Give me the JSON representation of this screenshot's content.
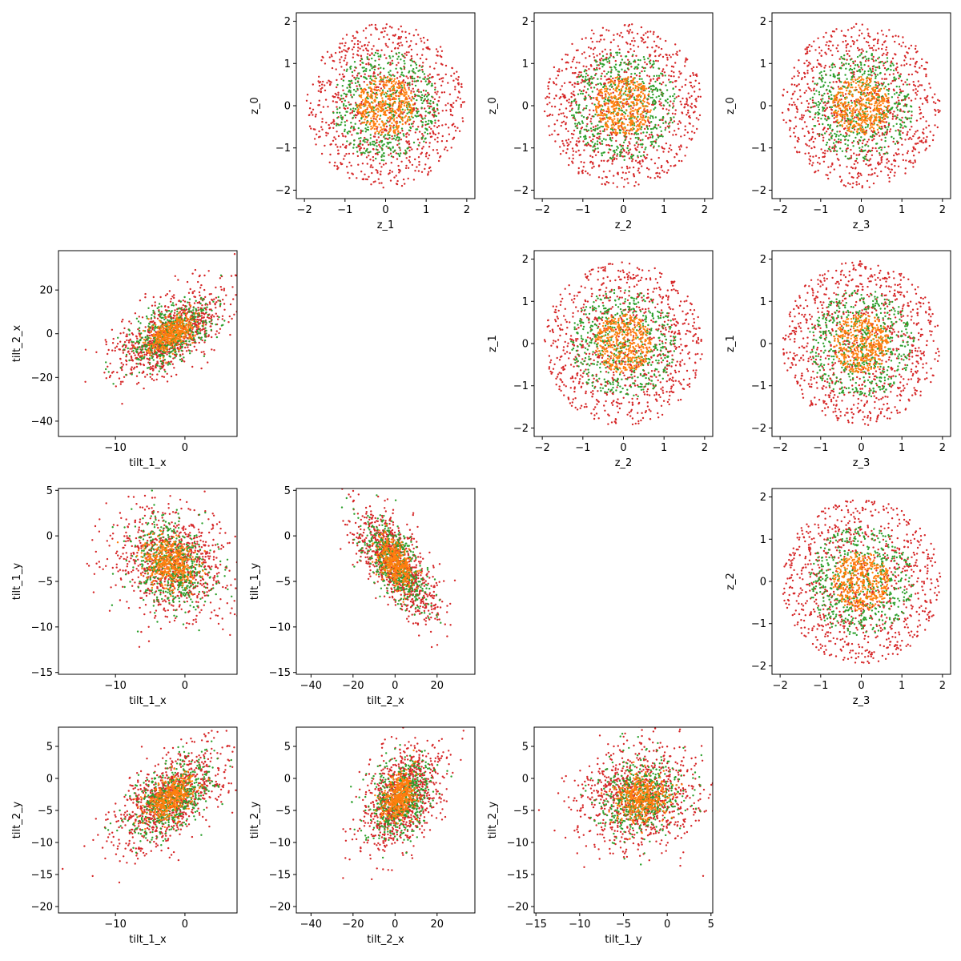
{
  "colors": {
    "red": "#d62728",
    "green": "#2ca02c",
    "orange": "#ff7f0e",
    "axes": "#000000",
    "background": "#ffffff"
  },
  "chart_data": [
    {
      "type": "scatter",
      "id": "z1-z0",
      "xlabel": "z_1",
      "ylabel": "z_0",
      "xlim": [
        -2.2,
        2.2
      ],
      "ylim": [
        -2.2,
        2.2
      ],
      "xticks": [
        -2,
        -1,
        0,
        1,
        2
      ],
      "yticks": [
        -2,
        -1,
        0,
        1,
        2
      ],
      "series": [
        {
          "color": "red",
          "distribution": "uniform-disk",
          "center": [
            0,
            0
          ],
          "radius": 1.95,
          "n": 900
        },
        {
          "color": "green",
          "distribution": "uniform-disk",
          "center": [
            0,
            0
          ],
          "radius": 1.3,
          "n": 500
        },
        {
          "color": "orange",
          "distribution": "uniform-disk",
          "center": [
            0,
            0
          ],
          "radius": 0.7,
          "n": 400
        }
      ],
      "grid": false
    },
    {
      "type": "scatter",
      "id": "z2-z0",
      "xlabel": "z_2",
      "ylabel": "z_0",
      "xlim": [
        -2.2,
        2.2
      ],
      "ylim": [
        -2.2,
        2.2
      ],
      "xticks": [
        -2,
        -1,
        0,
        1,
        2
      ],
      "yticks": [
        -2,
        -1,
        0,
        1,
        2
      ],
      "series": [
        {
          "color": "red",
          "distribution": "uniform-disk",
          "center": [
            0,
            0
          ],
          "radius": 1.95,
          "n": 900
        },
        {
          "color": "green",
          "distribution": "uniform-disk",
          "center": [
            0,
            0
          ],
          "radius": 1.3,
          "n": 500
        },
        {
          "color": "orange",
          "distribution": "uniform-disk",
          "center": [
            0,
            0
          ],
          "radius": 0.7,
          "n": 400
        }
      ],
      "grid": false
    },
    {
      "type": "scatter",
      "id": "z3-z0",
      "xlabel": "z_3",
      "ylabel": "z_0",
      "xlim": [
        -2.2,
        2.2
      ],
      "ylim": [
        -2.2,
        2.2
      ],
      "xticks": [
        -2,
        -1,
        0,
        1,
        2
      ],
      "yticks": [
        -2,
        -1,
        0,
        1,
        2
      ],
      "series": [
        {
          "color": "red",
          "distribution": "uniform-disk",
          "center": [
            0,
            0
          ],
          "radius": 1.95,
          "n": 900
        },
        {
          "color": "green",
          "distribution": "uniform-disk",
          "center": [
            0,
            0
          ],
          "radius": 1.3,
          "n": 500
        },
        {
          "color": "orange",
          "distribution": "uniform-disk",
          "center": [
            0,
            0
          ],
          "radius": 0.7,
          "n": 400
        }
      ],
      "grid": false
    },
    {
      "type": "scatter",
      "id": "tilt1x-tilt2x",
      "xlabel": "tilt_1_x",
      "ylabel": "tilt_2_x",
      "xlim": [
        -18.2,
        7.5
      ],
      "ylim": [
        -47,
        38
      ],
      "xticks": [
        -10,
        0
      ],
      "yticks": [
        -40,
        -20,
        0,
        20
      ],
      "series": [
        {
          "color": "red",
          "distribution": "gaussian",
          "center": [
            -2,
            0
          ],
          "sd": [
            4,
            10
          ],
          "corr": 0.6,
          "n": 900
        },
        {
          "color": "green",
          "distribution": "gaussian",
          "center": [
            -2,
            0
          ],
          "sd": [
            3,
            8
          ],
          "corr": 0.55,
          "n": 500
        },
        {
          "color": "orange",
          "distribution": "gaussian",
          "center": [
            -2,
            0
          ],
          "sd": [
            1.8,
            4
          ],
          "corr": 0.5,
          "n": 400
        }
      ],
      "grid": false
    },
    {
      "type": "scatter",
      "id": "z2-z1",
      "xlabel": "z_2",
      "ylabel": "z_1",
      "xlim": [
        -2.2,
        2.2
      ],
      "ylim": [
        -2.2,
        2.2
      ],
      "xticks": [
        -2,
        -1,
        0,
        1,
        2
      ],
      "yticks": [
        -2,
        -1,
        0,
        1,
        2
      ],
      "series": [
        {
          "color": "red",
          "distribution": "uniform-disk",
          "center": [
            0,
            0
          ],
          "radius": 1.95,
          "n": 900
        },
        {
          "color": "green",
          "distribution": "uniform-disk",
          "center": [
            0,
            0
          ],
          "radius": 1.3,
          "n": 500
        },
        {
          "color": "orange",
          "distribution": "uniform-disk",
          "center": [
            0,
            0
          ],
          "radius": 0.7,
          "n": 400
        }
      ],
      "grid": false
    },
    {
      "type": "scatter",
      "id": "z3-z1",
      "xlabel": "z_3",
      "ylabel": "z_1",
      "xlim": [
        -2.2,
        2.2
      ],
      "ylim": [
        -2.2,
        2.2
      ],
      "xticks": [
        -2,
        -1,
        0,
        1,
        2
      ],
      "yticks": [
        -2,
        -1,
        0,
        1,
        2
      ],
      "series": [
        {
          "color": "red",
          "distribution": "uniform-disk",
          "center": [
            0,
            0
          ],
          "radius": 1.95,
          "n": 900
        },
        {
          "color": "green",
          "distribution": "uniform-disk",
          "center": [
            0,
            0
          ],
          "radius": 1.3,
          "n": 500
        },
        {
          "color": "orange",
          "distribution": "uniform-disk",
          "center": [
            0,
            0
          ],
          "radius": 0.7,
          "n": 400
        }
      ],
      "grid": false
    },
    {
      "type": "scatter",
      "id": "tilt1x-tilt1y",
      "xlabel": "tilt_1_x",
      "ylabel": "tilt_1_y",
      "xlim": [
        -18.2,
        7.5
      ],
      "ylim": [
        -15.2,
        5.2
      ],
      "xticks": [
        -10,
        0
      ],
      "yticks": [
        -15,
        -10,
        -5,
        0,
        5
      ],
      "series": [
        {
          "color": "red",
          "distribution": "gaussian",
          "center": [
            -2,
            -3
          ],
          "sd": [
            4,
            3
          ],
          "corr": -0.2,
          "n": 900
        },
        {
          "color": "green",
          "distribution": "gaussian",
          "center": [
            -2,
            -3
          ],
          "sd": [
            3,
            2.4
          ],
          "corr": -0.2,
          "n": 500
        },
        {
          "color": "orange",
          "distribution": "gaussian",
          "center": [
            -2,
            -3
          ],
          "sd": [
            1.8,
            1.3
          ],
          "corr": -0.15,
          "n": 400
        }
      ],
      "grid": false
    },
    {
      "type": "scatter",
      "id": "tilt2x-tilt1y",
      "xlabel": "tilt_2_x",
      "ylabel": "tilt_1_y",
      "xlim": [
        -47,
        38
      ],
      "ylim": [
        -15.2,
        5.2
      ],
      "xticks": [
        -40,
        -20,
        0,
        20
      ],
      "yticks": [
        -15,
        -10,
        -5,
        0,
        5
      ],
      "series": [
        {
          "color": "red",
          "distribution": "gaussian",
          "center": [
            0,
            -3
          ],
          "sd": [
            10,
            3
          ],
          "corr": -0.7,
          "n": 900
        },
        {
          "color": "green",
          "distribution": "gaussian",
          "center": [
            0,
            -3
          ],
          "sd": [
            8,
            2.4
          ],
          "corr": -0.65,
          "n": 500
        },
        {
          "color": "orange",
          "distribution": "gaussian",
          "center": [
            0,
            -3
          ],
          "sd": [
            4,
            1.3
          ],
          "corr": -0.5,
          "n": 400
        }
      ],
      "grid": false
    },
    {
      "type": "scatter",
      "id": "z3-z2",
      "xlabel": "z_3",
      "ylabel": "z_2",
      "xlim": [
        -2.2,
        2.2
      ],
      "ylim": [
        -2.2,
        2.2
      ],
      "xticks": [
        -2,
        -1,
        0,
        1,
        2
      ],
      "yticks": [
        -2,
        -1,
        0,
        1,
        2
      ],
      "series": [
        {
          "color": "red",
          "distribution": "uniform-disk",
          "center": [
            0,
            0
          ],
          "radius": 1.95,
          "n": 900
        },
        {
          "color": "green",
          "distribution": "uniform-disk",
          "center": [
            0,
            0
          ],
          "radius": 1.3,
          "n": 500
        },
        {
          "color": "orange",
          "distribution": "uniform-disk",
          "center": [
            0,
            0
          ],
          "radius": 0.7,
          "n": 400
        }
      ],
      "grid": false
    },
    {
      "type": "scatter",
      "id": "tilt1x-tilt2y",
      "xlabel": "tilt_1_x",
      "ylabel": "tilt_2_y",
      "xlim": [
        -18.2,
        7.5
      ],
      "ylim": [
        -21,
        8
      ],
      "xticks": [
        -10,
        0
      ],
      "yticks": [
        -20,
        -15,
        -10,
        -5,
        0,
        5
      ],
      "series": [
        {
          "color": "red",
          "distribution": "gaussian",
          "center": [
            -2,
            -3
          ],
          "sd": [
            4,
            4
          ],
          "corr": 0.6,
          "n": 900
        },
        {
          "color": "green",
          "distribution": "gaussian",
          "center": [
            -2,
            -3
          ],
          "sd": [
            3,
            3.2
          ],
          "corr": 0.55,
          "n": 500
        },
        {
          "color": "orange",
          "distribution": "gaussian",
          "center": [
            -2,
            -3
          ],
          "sd": [
            1.8,
            1.8
          ],
          "corr": 0.5,
          "n": 400
        }
      ],
      "grid": false
    },
    {
      "type": "scatter",
      "id": "tilt2x-tilt2y",
      "xlabel": "tilt_2_x",
      "ylabel": "tilt_2_y",
      "xlim": [
        -47,
        38
      ],
      "ylim": [
        -21,
        8
      ],
      "xticks": [
        -40,
        -20,
        0,
        20
      ],
      "yticks": [
        -20,
        -15,
        -10,
        -5,
        0,
        5
      ],
      "series": [
        {
          "color": "red",
          "distribution": "gaussian",
          "center": [
            3,
            -3
          ],
          "sd": [
            10,
            4
          ],
          "corr": 0.4,
          "n": 900
        },
        {
          "color": "green",
          "distribution": "gaussian",
          "center": [
            3,
            -3
          ],
          "sd": [
            8,
            3.2
          ],
          "corr": 0.4,
          "n": 500
        },
        {
          "color": "orange",
          "distribution": "gaussian",
          "center": [
            2,
            -3
          ],
          "sd": [
            4,
            1.8
          ],
          "corr": 0.35,
          "n": 400
        }
      ],
      "grid": false
    },
    {
      "type": "scatter",
      "id": "tilt1y-tilt2y",
      "xlabel": "tilt_1_y",
      "ylabel": "tilt_2_y",
      "xlim": [
        -15.2,
        5.2
      ],
      "ylim": [
        -21,
        8
      ],
      "xticks": [
        -15,
        -10,
        -5,
        0,
        5
      ],
      "yticks": [
        -20,
        -15,
        -10,
        -5,
        0,
        5
      ],
      "series": [
        {
          "color": "red",
          "distribution": "gaussian",
          "center": [
            -3,
            -3
          ],
          "sd": [
            3.5,
            4
          ],
          "corr": 0.1,
          "n": 900
        },
        {
          "color": "green",
          "distribution": "gaussian",
          "center": [
            -3,
            -3
          ],
          "sd": [
            2.6,
            3.2
          ],
          "corr": 0.1,
          "n": 500
        },
        {
          "color": "orange",
          "distribution": "gaussian",
          "center": [
            -3,
            -3
          ],
          "sd": [
            1.5,
            1.8
          ],
          "corr": 0.1,
          "n": 400
        }
      ],
      "grid": false
    }
  ]
}
